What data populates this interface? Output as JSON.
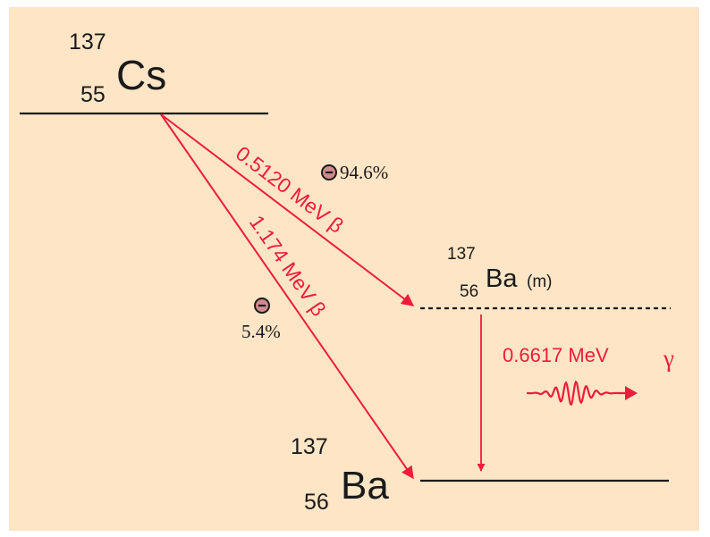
{
  "colors": {
    "background": "#fde5c6",
    "level_line": "#1a1a1a",
    "transition": "#ee1c3a",
    "electron_badge": "#d08a8f"
  },
  "parent": {
    "mass": "137",
    "atomic_number": "55",
    "symbol": "Cs"
  },
  "metastable": {
    "mass": "137",
    "atomic_number": "56",
    "symbol": "Ba",
    "state": "(m)"
  },
  "ground": {
    "mass": "137",
    "atomic_number": "56",
    "symbol": "Ba"
  },
  "beta_to_metastable": {
    "energy_label": "0.5120 MeV β",
    "branching": "94.6%",
    "particle_icon": "electron-icon"
  },
  "beta_to_ground": {
    "energy_label": "1.174 MeV β",
    "branching": "5.4%",
    "particle_icon": "electron-icon"
  },
  "gamma": {
    "energy_label": "0.6617 MeV",
    "symbol": "γ",
    "wave_icon": "gamma-wave-icon"
  }
}
